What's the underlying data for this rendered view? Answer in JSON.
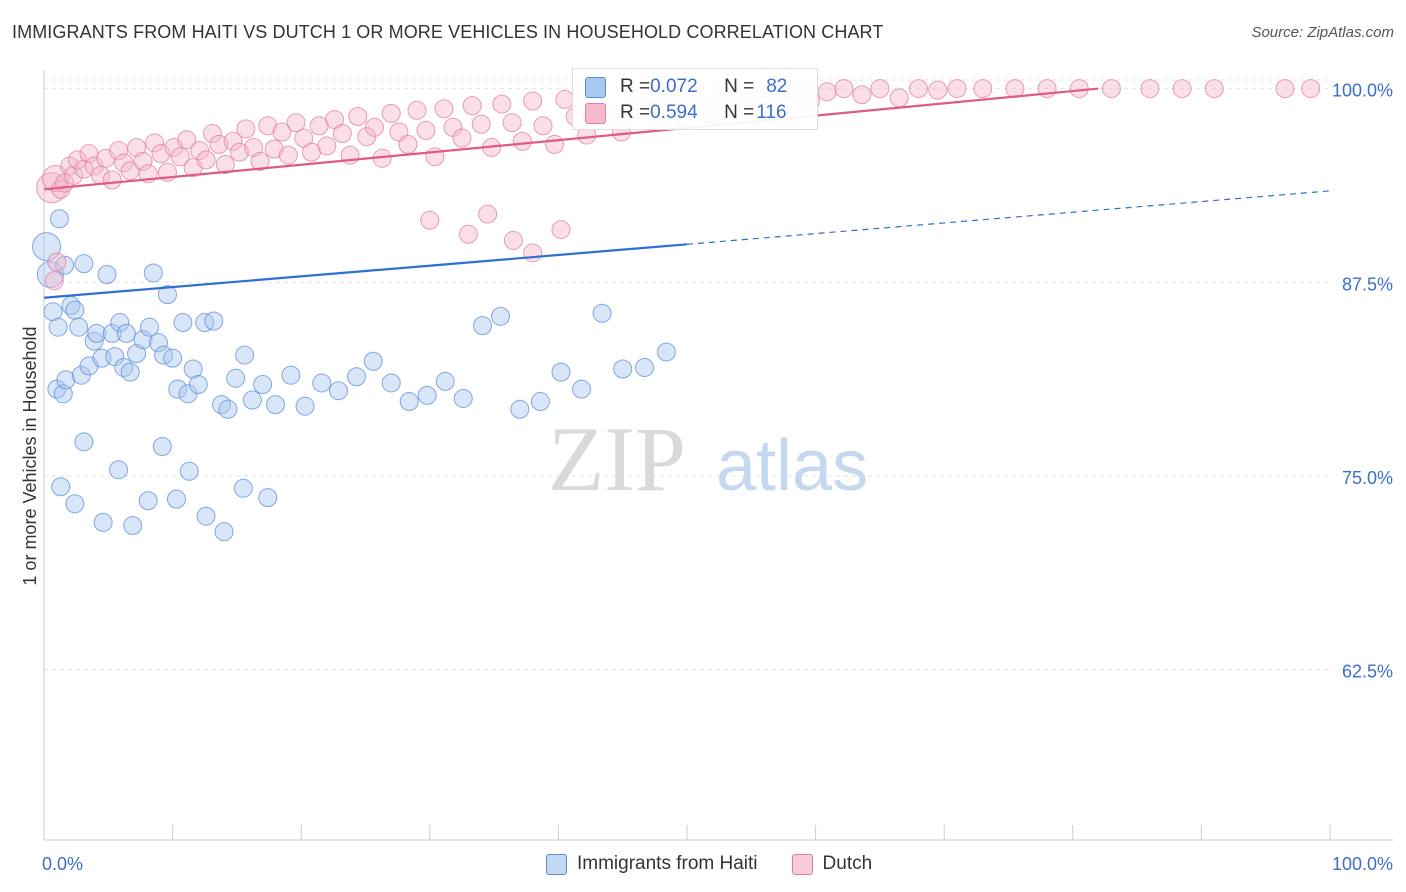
{
  "title": "IMMIGRANTS FROM HAITI VS DUTCH 1 OR MORE VEHICLES IN HOUSEHOLD CORRELATION CHART",
  "source": "Source: ZipAtlas.com",
  "watermark": {
    "zip": "ZIP",
    "atlas": "atlas"
  },
  "colors": {
    "haiti_fill": "#a8c8f0",
    "haiti_stroke": "#5b8ed8",
    "haiti_line": "#2f6fd0",
    "dutch_fill": "#f5b8cc",
    "dutch_stroke": "#e07ea0",
    "dutch_line": "#e05a88",
    "tick_label": "#3b6fc9",
    "grid": "#e2e2e2"
  },
  "stats": [
    {
      "r_label": "R = ",
      "r_value": "0.072",
      "n_label": "N = ",
      "n_value": "82"
    },
    {
      "r_label": "R = ",
      "r_value": "0.594",
      "n_label": "N = ",
      "n_value": "116"
    }
  ],
  "chart_data": {
    "type": "scatter",
    "title": "IMMIGRANTS FROM HAITI VS DUTCH 1 OR MORE VEHICLES IN HOUSEHOLD CORRELATION CHART",
    "xlabel": "",
    "ylabel": "1 or more Vehicles in Household",
    "xlim": [
      0,
      100
    ],
    "ylim": [
      51.5,
      101.2
    ],
    "x_tick_labels": [
      {
        "value": 0,
        "label": "0.0%"
      },
      {
        "value": 100,
        "label": "100.0%"
      }
    ],
    "y_tick_labels": [
      {
        "value": 100,
        "label": "100.0%"
      },
      {
        "value": 87.5,
        "label": "87.5%"
      },
      {
        "value": 75,
        "label": "75.0%"
      },
      {
        "value": 62.5,
        "label": "62.5%"
      }
    ],
    "grid": true,
    "legend_position": "bottom-center",
    "series": [
      {
        "name": "Immigrants from Haiti",
        "color": "#a8c8f0",
        "trend": {
          "x": [
            0,
            50
          ],
          "y": [
            86.5,
            89.95
          ],
          "extended_to": [
            100,
            93.4
          ]
        },
        "points": [
          [
            0.2,
            89.8
          ],
          [
            0.5,
            88.0
          ],
          [
            0.7,
            85.6
          ],
          [
            1.0,
            80.6
          ],
          [
            1.1,
            84.6
          ],
          [
            1.2,
            91.6
          ],
          [
            1.5,
            80.3
          ],
          [
            1.6,
            88.6
          ],
          [
            1.7,
            81.2
          ],
          [
            2.1,
            86.0
          ],
          [
            2.4,
            85.7
          ],
          [
            2.7,
            84.6
          ],
          [
            2.9,
            81.5
          ],
          [
            3.1,
            88.7
          ],
          [
            3.5,
            82.1
          ],
          [
            3.9,
            83.7
          ],
          [
            4.1,
            84.2
          ],
          [
            4.5,
            82.6
          ],
          [
            4.9,
            88.0
          ],
          [
            5.3,
            84.2
          ],
          [
            5.5,
            82.7
          ],
          [
            5.9,
            84.9
          ],
          [
            6.2,
            82.0
          ],
          [
            6.4,
            84.2
          ],
          [
            6.7,
            81.7
          ],
          [
            7.2,
            82.9
          ],
          [
            7.7,
            83.8
          ],
          [
            8.2,
            84.6
          ],
          [
            8.5,
            88.1
          ],
          [
            8.9,
            83.6
          ],
          [
            9.3,
            82.8
          ],
          [
            9.6,
            86.7
          ],
          [
            10.0,
            82.6
          ],
          [
            10.4,
            80.6
          ],
          [
            10.8,
            84.9
          ],
          [
            11.2,
            80.3
          ],
          [
            11.6,
            81.9
          ],
          [
            12.0,
            80.9
          ],
          [
            12.5,
            84.9
          ],
          [
            13.2,
            85.0
          ],
          [
            13.8,
            79.6
          ],
          [
            14.3,
            79.3
          ],
          [
            14.9,
            81.3
          ],
          [
            15.6,
            82.8
          ],
          [
            16.2,
            79.9
          ],
          [
            17.0,
            80.9
          ],
          [
            18.0,
            79.6
          ],
          [
            19.2,
            81.5
          ],
          [
            20.3,
            79.5
          ],
          [
            21.6,
            81.0
          ],
          [
            22.9,
            80.5
          ],
          [
            24.3,
            81.4
          ],
          [
            25.6,
            82.4
          ],
          [
            27.0,
            81.0
          ],
          [
            28.4,
            79.8
          ],
          [
            29.8,
            80.2
          ],
          [
            31.2,
            81.1
          ],
          [
            32.6,
            80.0
          ],
          [
            34.1,
            84.7
          ],
          [
            35.5,
            85.3
          ],
          [
            37.0,
            79.3
          ],
          [
            38.6,
            79.8
          ],
          [
            40.2,
            81.7
          ],
          [
            41.8,
            80.6
          ],
          [
            43.4,
            85.5
          ],
          [
            45.0,
            81.9
          ],
          [
            46.7,
            82.0
          ],
          [
            48.4,
            83.0
          ],
          [
            1.3,
            74.3
          ],
          [
            2.4,
            73.2
          ],
          [
            3.1,
            77.2
          ],
          [
            4.6,
            72.0
          ],
          [
            5.8,
            75.4
          ],
          [
            6.9,
            71.8
          ],
          [
            8.1,
            73.4
          ],
          [
            9.2,
            76.9
          ],
          [
            10.3,
            73.5
          ],
          [
            11.3,
            75.3
          ],
          [
            12.6,
            72.4
          ],
          [
            14.0,
            71.4
          ],
          [
            15.5,
            74.2
          ],
          [
            17.4,
            73.6
          ]
        ],
        "sizes": [
          14,
          13,
          9,
          9,
          9,
          9,
          9,
          9,
          9,
          9,
          9,
          9,
          9,
          9,
          9,
          9,
          9,
          9,
          9,
          9,
          9,
          9,
          9,
          9,
          9,
          9,
          9,
          9,
          9,
          9,
          9,
          9,
          9,
          9,
          9,
          9,
          9,
          9,
          9,
          9,
          9,
          9,
          9,
          9,
          9,
          9,
          9,
          9,
          9,
          9,
          9,
          9,
          9,
          9,
          9,
          9,
          9,
          9,
          9,
          9,
          9,
          9,
          9,
          9,
          9,
          9,
          9,
          9,
          9,
          9,
          9,
          9,
          9,
          9,
          9,
          9,
          9,
          9,
          9,
          9,
          9,
          9
        ]
      },
      {
        "name": "Dutch",
        "color": "#f5b8cc",
        "trend": {
          "x": [
            0,
            82
          ],
          "y": [
            93.5,
            100.0
          ]
        },
        "points": [
          [
            0.6,
            93.6
          ],
          [
            0.9,
            94.2
          ],
          [
            1.3,
            93.5
          ],
          [
            1.6,
            93.9
          ],
          [
            2.0,
            95.0
          ],
          [
            2.3,
            94.4
          ],
          [
            2.6,
            95.4
          ],
          [
            3.1,
            94.8
          ],
          [
            3.5,
            95.8
          ],
          [
            3.9,
            95.0
          ],
          [
            4.4,
            94.4
          ],
          [
            4.8,
            95.5
          ],
          [
            5.3,
            94.1
          ],
          [
            5.8,
            96.0
          ],
          [
            6.2,
            95.2
          ],
          [
            6.7,
            94.7
          ],
          [
            7.2,
            96.2
          ],
          [
            7.7,
            95.3
          ],
          [
            8.1,
            94.5
          ],
          [
            8.6,
            96.5
          ],
          [
            9.1,
            95.8
          ],
          [
            9.6,
            94.6
          ],
          [
            10.1,
            96.2
          ],
          [
            10.6,
            95.6
          ],
          [
            11.1,
            96.7
          ],
          [
            11.6,
            94.9
          ],
          [
            12.1,
            96.0
          ],
          [
            12.6,
            95.4
          ],
          [
            13.1,
            97.1
          ],
          [
            13.6,
            96.4
          ],
          [
            14.1,
            95.1
          ],
          [
            14.7,
            96.6
          ],
          [
            15.2,
            95.9
          ],
          [
            15.7,
            97.4
          ],
          [
            16.3,
            96.2
          ],
          [
            16.8,
            95.3
          ],
          [
            17.4,
            97.6
          ],
          [
            17.9,
            96.1
          ],
          [
            18.5,
            97.2
          ],
          [
            19.0,
            95.7
          ],
          [
            19.6,
            97.8
          ],
          [
            20.2,
            96.8
          ],
          [
            20.8,
            95.9
          ],
          [
            21.4,
            97.6
          ],
          [
            22.0,
            96.3
          ],
          [
            22.6,
            98.0
          ],
          [
            23.2,
            97.1
          ],
          [
            23.8,
            95.7
          ],
          [
            24.4,
            98.2
          ],
          [
            25.1,
            96.9
          ],
          [
            25.7,
            97.5
          ],
          [
            26.3,
            95.5
          ],
          [
            27.0,
            98.4
          ],
          [
            27.6,
            97.2
          ],
          [
            28.3,
            96.4
          ],
          [
            29.0,
            98.6
          ],
          [
            29.7,
            97.3
          ],
          [
            30.4,
            95.6
          ],
          [
            31.1,
            98.7
          ],
          [
            31.8,
            97.5
          ],
          [
            32.5,
            96.8
          ],
          [
            33.3,
            98.9
          ],
          [
            34.0,
            97.7
          ],
          [
            34.8,
            96.2
          ],
          [
            35.6,
            99.0
          ],
          [
            36.4,
            97.8
          ],
          [
            37.2,
            96.6
          ],
          [
            38.0,
            99.2
          ],
          [
            38.8,
            97.6
          ],
          [
            39.7,
            96.4
          ],
          [
            40.5,
            99.3
          ],
          [
            41.3,
            98.2
          ],
          [
            42.2,
            97.0
          ],
          [
            43.1,
            99.4
          ],
          [
            44.0,
            98.3
          ],
          [
            44.9,
            97.2
          ],
          [
            45.8,
            99.5
          ],
          [
            46.8,
            98.6
          ],
          [
            47.7,
            97.9
          ],
          [
            48.7,
            99.6
          ],
          [
            49.6,
            98.1
          ],
          [
            50.6,
            99.8
          ],
          [
            51.7,
            98.4
          ],
          [
            52.7,
            99.7
          ],
          [
            53.8,
            99.9
          ],
          [
            54.8,
            98.8
          ],
          [
            56.0,
            99.6
          ],
          [
            57.2,
            99.9
          ],
          [
            58.4,
            100.0
          ],
          [
            59.6,
            99.2
          ],
          [
            60.9,
            99.8
          ],
          [
            62.2,
            100.0
          ],
          [
            63.6,
            99.6
          ],
          [
            65.0,
            100.0
          ],
          [
            66.5,
            99.4
          ],
          [
            68.0,
            100.0
          ],
          [
            69.5,
            99.9
          ],
          [
            71.0,
            100.0
          ],
          [
            73.0,
            100.0
          ],
          [
            75.5,
            100.0
          ],
          [
            78.0,
            100.0
          ],
          [
            80.5,
            100.0
          ],
          [
            83.0,
            100.0
          ],
          [
            86.0,
            100.0
          ],
          [
            88.5,
            100.0
          ],
          [
            91.0,
            100.0
          ],
          [
            96.5,
            100.0
          ],
          [
            98.5,
            100.0
          ],
          [
            30.0,
            91.5
          ],
          [
            33.0,
            90.6
          ],
          [
            34.5,
            91.9
          ],
          [
            36.5,
            90.2
          ],
          [
            38.0,
            89.4
          ],
          [
            40.2,
            90.9
          ],
          [
            0.8,
            87.6
          ],
          [
            1.0,
            88.8
          ]
        ],
        "sizes": [
          15,
          13,
          9,
          9,
          9,
          9,
          9,
          9,
          9,
          9,
          9,
          9,
          9,
          9,
          9,
          9,
          9,
          9,
          9,
          9,
          9,
          9,
          9,
          9,
          9,
          9,
          9,
          9,
          9,
          9,
          9,
          9,
          9,
          9,
          9,
          9,
          9,
          9,
          9,
          9,
          9,
          9,
          9,
          9,
          9,
          9,
          9,
          9,
          9,
          9,
          9,
          9,
          9,
          9,
          9,
          9,
          9,
          9,
          9,
          9,
          9,
          9,
          9,
          9,
          9,
          9,
          9,
          9,
          9,
          9,
          9,
          9,
          9,
          9,
          9,
          9,
          9,
          9,
          9,
          9,
          9,
          9,
          9,
          9,
          9,
          9,
          9,
          9,
          9,
          9,
          9,
          9,
          9,
          9,
          9,
          9,
          9,
          9,
          9,
          9,
          9,
          9,
          9,
          9,
          9,
          9,
          9,
          9,
          9,
          9,
          9,
          9,
          9,
          9,
          9,
          9
        ]
      }
    ]
  }
}
